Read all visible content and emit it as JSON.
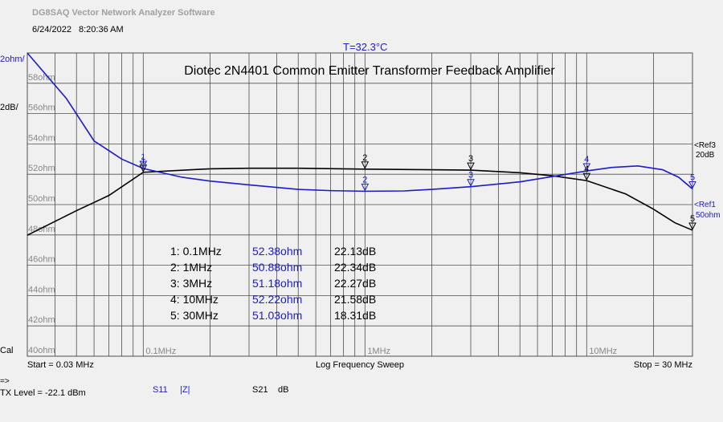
{
  "header": {
    "app_title": "DG8SAQ Vector Network Analyzer Software",
    "date": "6/24/2022",
    "time": "8:20:36 AM",
    "temperature": "T=32.3°C"
  },
  "colors": {
    "s21": "#000000",
    "s11": "#1c1cc8",
    "grid": "#505050",
    "bg": "#f0f0f0"
  },
  "chart_data": {
    "type": "line",
    "title": "Diotec 2N4401 Common Emitter Transformer Feedback Amplifier",
    "x_scale": "log",
    "xlim_mhz": [
      0.03,
      30
    ],
    "x_tick_labels": [
      {
        "mhz": 0.1,
        "label": "0.1MHz"
      },
      {
        "mhz": 1,
        "label": "1MHz"
      },
      {
        "mhz": 10,
        "label": "10MHz"
      }
    ],
    "x_start_label": "Start = 0.03 MHz",
    "x_center_label": "Log Frequency Sweep",
    "x_stop_label": "Stop = 30 MHz",
    "left_axis": {
      "top_labels": [
        "2ohm/",
        "2dB/"
      ],
      "ohm_ticks": [
        "58ohm",
        "56ohm",
        "54ohm",
        "52ohm",
        "50ohm",
        "48ohm",
        "46ohm",
        "44ohm",
        "42ohm",
        "40ohm"
      ],
      "ylim_ohm": [
        40,
        60
      ]
    },
    "ref_labels": {
      "ref3": [
        "<Ref3",
        "20dB"
      ],
      "ref1": [
        "<Ref1",
        "50ohm"
      ]
    },
    "series": [
      {
        "name": "S21 dB",
        "key": "s21",
        "ref_db": 20,
        "points_mhz_db": [
          [
            0.03,
            17.98
          ],
          [
            0.05,
            19.6
          ],
          [
            0.07,
            20.6
          ],
          [
            0.1,
            22.13
          ],
          [
            0.2,
            22.36
          ],
          [
            0.3,
            22.4
          ],
          [
            0.5,
            22.4
          ],
          [
            1,
            22.34
          ],
          [
            2,
            22.3
          ],
          [
            3,
            22.27
          ],
          [
            5,
            22.1
          ],
          [
            7,
            21.9
          ],
          [
            10,
            21.58
          ],
          [
            15,
            20.7
          ],
          [
            20,
            19.7
          ],
          [
            25,
            18.8
          ],
          [
            30,
            18.31
          ]
        ]
      },
      {
        "name": "S11 |Z|",
        "key": "s11",
        "points_mhz_ohm": [
          [
            0.03,
            60.0
          ],
          [
            0.045,
            57.0
          ],
          [
            0.06,
            54.2
          ],
          [
            0.08,
            53.0
          ],
          [
            0.1,
            52.38
          ],
          [
            0.15,
            51.8
          ],
          [
            0.2,
            51.55
          ],
          [
            0.3,
            51.3
          ],
          [
            0.5,
            51.0
          ],
          [
            0.7,
            50.92
          ],
          [
            1,
            50.88
          ],
          [
            1.5,
            50.9
          ],
          [
            2,
            51.0
          ],
          [
            3,
            51.18
          ],
          [
            5,
            51.5
          ],
          [
            7,
            51.85
          ],
          [
            10,
            52.22
          ],
          [
            13,
            52.45
          ],
          [
            17,
            52.55
          ],
          [
            22,
            52.3
          ],
          [
            26,
            51.8
          ],
          [
            30,
            51.03
          ]
        ]
      }
    ],
    "markers": [
      {
        "id": "1",
        "freq_mhz": 0.1,
        "freq_label": "0.1MHz",
        "s11": "52.38ohm",
        "s21": "22.13dB",
        "s11_val": 52.38,
        "s21_val": 22.13
      },
      {
        "id": "2",
        "freq_mhz": 1,
        "freq_label": "1MHz",
        "s11": "50.88ohm",
        "s21": "22.34dB",
        "s11_val": 50.88,
        "s21_val": 22.34
      },
      {
        "id": "3",
        "freq_mhz": 3,
        "freq_label": "3MHz",
        "s11": "51.18ohm",
        "s21": "22.27dB",
        "s11_val": 51.18,
        "s21_val": 22.27
      },
      {
        "id": "4",
        "freq_mhz": 10,
        "freq_label": "10MHz",
        "s11": "52.22ohm",
        "s21": "21.58dB",
        "s11_val": 52.22,
        "s21_val": 21.58
      },
      {
        "id": "5",
        "freq_mhz": 30,
        "freq_label": "30MHz",
        "s11": "51.03ohm",
        "s21": "18.31dB",
        "s11_val": 51.03,
        "s21_val": 18.31
      }
    ]
  },
  "footer": {
    "cal": "Cal",
    "arrow": "=>",
    "tx_level": "TX Level = -22.1 dBm",
    "s11_label": "S11",
    "s11_unit": "|Z|",
    "s21_label": "S21",
    "s21_unit": "dB"
  }
}
